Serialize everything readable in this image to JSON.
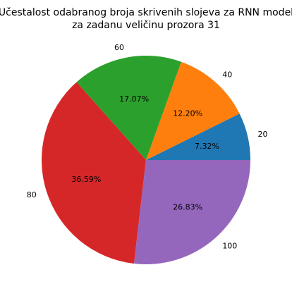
{
  "chart_data": {
    "type": "pie",
    "title": "Učestalost odabranog broja skrivenih slojeva za RNN model",
    "subtitle": "za zadanu veličinu prozora 31",
    "start_angle": 0,
    "direction": "counterclockwise",
    "slices": [
      {
        "label": "20",
        "value": 7.32,
        "pct_label": "7.32%",
        "color": "#1f77b4"
      },
      {
        "label": "40",
        "value": 12.2,
        "pct_label": "12.20%",
        "color": "#ff7f0e"
      },
      {
        "label": "60",
        "value": 17.07,
        "pct_label": "17.07%",
        "color": "#2ca02c"
      },
      {
        "label": "80",
        "value": 36.59,
        "pct_label": "36.59%",
        "color": "#d62728"
      },
      {
        "label": "100",
        "value": 26.83,
        "pct_label": "26.83%",
        "color": "#9467bd"
      }
    ]
  }
}
